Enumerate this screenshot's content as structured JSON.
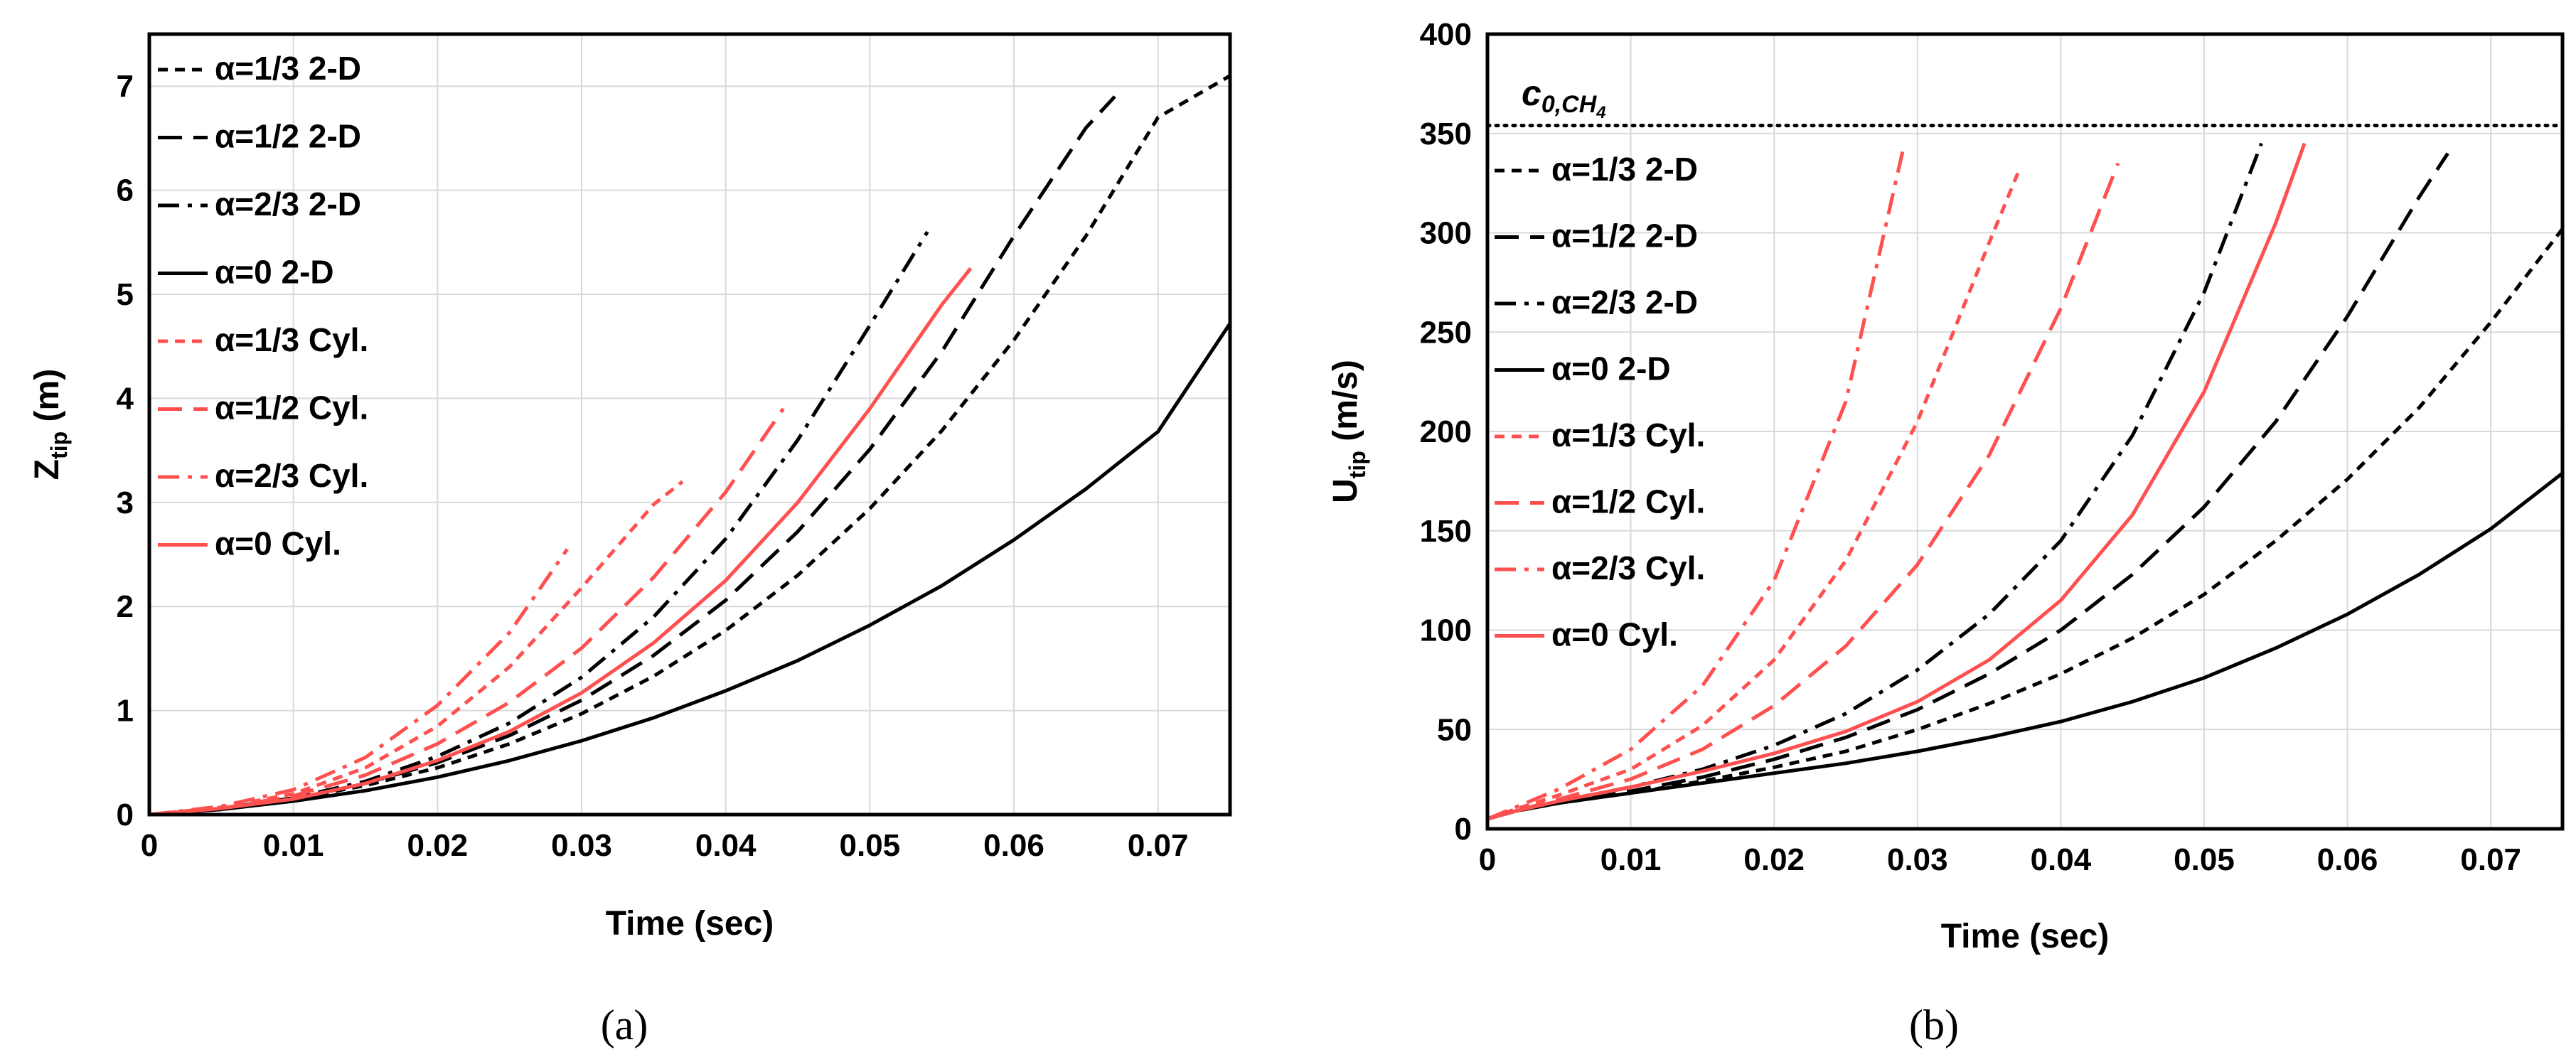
{
  "chart_data": [
    {
      "id": "a",
      "type": "line",
      "panel_label": "(a)",
      "xlabel": "Time (sec)",
      "ylabel_main": "Z",
      "ylabel_sub": "tip",
      "ylabel_unit": " (m)",
      "xlim": [
        0,
        0.075
      ],
      "ylim": [
        0,
        7.5
      ],
      "xticks": [
        0,
        0.01,
        0.02,
        0.03,
        0.04,
        0.05,
        0.06,
        0.07
      ],
      "xtick_labels": [
        "0",
        "0.01",
        "0.02",
        "0.03",
        "0.04",
        "0.05",
        "0.06",
        "0.07"
      ],
      "yticks": [
        0,
        1,
        2,
        3,
        4,
        5,
        6,
        7
      ],
      "ytick_labels": [
        "0",
        "1",
        "2",
        "3",
        "4",
        "5",
        "6",
        "7"
      ],
      "grid": true,
      "legend_position": "top-left",
      "series": [
        {
          "name": "α=1/3 2-D",
          "color": "#000000",
          "dash": "short",
          "x": [
            0,
            0.005,
            0.01,
            0.015,
            0.02,
            0.025,
            0.03,
            0.035,
            0.04,
            0.045,
            0.05,
            0.055,
            0.06,
            0.065,
            0.07,
            0.075
          ],
          "y": [
            0,
            0.06,
            0.15,
            0.28,
            0.45,
            0.68,
            0.97,
            1.33,
            1.77,
            2.3,
            2.94,
            3.69,
            4.56,
            5.56,
            6.7,
            7.1
          ]
        },
        {
          "name": "α=1/2 2-D",
          "color": "#000000",
          "dash": "long",
          "x": [
            0,
            0.005,
            0.01,
            0.015,
            0.02,
            0.025,
            0.03,
            0.035,
            0.04,
            0.045,
            0.05,
            0.055,
            0.06,
            0.065,
            0.067
          ],
          "y": [
            0,
            0.06,
            0.15,
            0.3,
            0.5,
            0.76,
            1.1,
            1.53,
            2.06,
            2.72,
            3.51,
            4.45,
            5.56,
            6.6,
            6.9
          ]
        },
        {
          "name": "α=2/3 2-D",
          "color": "#000000",
          "dash": "dashdot",
          "x": [
            0,
            0.005,
            0.01,
            0.015,
            0.02,
            0.025,
            0.03,
            0.035,
            0.04,
            0.045,
            0.05,
            0.054
          ],
          "y": [
            0,
            0.06,
            0.16,
            0.32,
            0.56,
            0.88,
            1.32,
            1.9,
            2.65,
            3.6,
            4.7,
            5.6
          ]
        },
        {
          "name": "α=0 2-D",
          "color": "#000000",
          "dash": "solid",
          "x": [
            0,
            0.005,
            0.01,
            0.015,
            0.02,
            0.025,
            0.03,
            0.035,
            0.04,
            0.045,
            0.05,
            0.055,
            0.06,
            0.065,
            0.07,
            0.075
          ],
          "y": [
            0,
            0.05,
            0.13,
            0.23,
            0.36,
            0.52,
            0.71,
            0.93,
            1.19,
            1.48,
            1.82,
            2.2,
            2.64,
            3.13,
            3.68,
            4.72
          ]
        },
        {
          "name": "α=1/3 Cyl.",
          "color": "#ff5050",
          "dash": "short",
          "x": [
            0,
            0.005,
            0.01,
            0.015,
            0.02,
            0.025,
            0.03,
            0.035,
            0.037
          ],
          "y": [
            0,
            0.07,
            0.2,
            0.45,
            0.85,
            1.42,
            2.18,
            2.98,
            3.2
          ]
        },
        {
          "name": "α=1/2 Cyl.",
          "color": "#ff5050",
          "dash": "long",
          "x": [
            0,
            0.005,
            0.01,
            0.015,
            0.02,
            0.025,
            0.03,
            0.035,
            0.04,
            0.044
          ],
          "y": [
            0,
            0.06,
            0.18,
            0.38,
            0.68,
            1.08,
            1.6,
            2.28,
            3.1,
            3.9
          ]
        },
        {
          "name": "α=2/3 Cyl.",
          "color": "#ff5050",
          "dash": "dashdot",
          "x": [
            0,
            0.005,
            0.01,
            0.015,
            0.02,
            0.025,
            0.029
          ],
          "y": [
            0,
            0.08,
            0.24,
            0.55,
            1.05,
            1.75,
            2.55
          ]
        },
        {
          "name": "α=0 Cyl.",
          "color": "#ff5050",
          "dash": "solid",
          "x": [
            0,
            0.005,
            0.01,
            0.015,
            0.02,
            0.025,
            0.03,
            0.035,
            0.04,
            0.045,
            0.05,
            0.055,
            0.057
          ],
          "y": [
            0,
            0.06,
            0.15,
            0.3,
            0.52,
            0.8,
            1.17,
            1.65,
            2.25,
            3.0,
            3.9,
            4.9,
            5.25
          ]
        }
      ]
    },
    {
      "id": "b",
      "type": "line",
      "panel_label": "(b)",
      "xlabel": "Time (sec)",
      "ylabel_main": "U",
      "ylabel_sub": "tip",
      "ylabel_unit": " (m/s)",
      "xlim": [
        0,
        0.075
      ],
      "ylim": [
        0,
        400
      ],
      "xticks": [
        0,
        0.01,
        0.02,
        0.03,
        0.04,
        0.05,
        0.06,
        0.07
      ],
      "xtick_labels": [
        "0",
        "0.01",
        "0.02",
        "0.03",
        "0.04",
        "0.05",
        "0.06",
        "0.07"
      ],
      "yticks": [
        0,
        50,
        100,
        150,
        200,
        250,
        300,
        350,
        400
      ],
      "ytick_labels": [
        "0",
        "50",
        "100",
        "150",
        "200",
        "250",
        "300",
        "350",
        "400"
      ],
      "grid": true,
      "legend_position": "top-left",
      "reference_line": {
        "label_main": "c",
        "label_sub": "0,CH",
        "label_subsub": "4",
        "y": 354
      },
      "series": [
        {
          "name": "α=1/3 2-D",
          "color": "#000000",
          "dash": "short",
          "x": [
            0,
            0.002,
            0.005,
            0.01,
            0.015,
            0.02,
            0.025,
            0.03,
            0.035,
            0.04,
            0.045,
            0.05,
            0.055,
            0.06,
            0.065,
            0.07,
            0.075
          ],
          "y": [
            5,
            9,
            13,
            18,
            24,
            31,
            39,
            50,
            63,
            78,
            96,
            118,
            145,
            176,
            212,
            255,
            302
          ]
        },
        {
          "name": "α=1/2 2-D",
          "color": "#000000",
          "dash": "long",
          "x": [
            0,
            0.002,
            0.005,
            0.01,
            0.015,
            0.02,
            0.025,
            0.03,
            0.035,
            0.04,
            0.045,
            0.05,
            0.055,
            0.06,
            0.065,
            0.067
          ],
          "y": [
            5,
            9,
            13,
            19,
            26,
            35,
            46,
            60,
            78,
            100,
            128,
            162,
            205,
            258,
            318,
            340
          ]
        },
        {
          "name": "α=2/3 2-D",
          "color": "#000000",
          "dash": "dashdot",
          "x": [
            0,
            0.002,
            0.005,
            0.01,
            0.015,
            0.02,
            0.025,
            0.03,
            0.035,
            0.04,
            0.045,
            0.05,
            0.054
          ],
          "y": [
            5,
            9,
            14,
            21,
            30,
            42,
            58,
            80,
            108,
            145,
            198,
            270,
            345
          ]
        },
        {
          "name": "α=0 2-D",
          "color": "#000000",
          "dash": "solid",
          "x": [
            0,
            0.002,
            0.005,
            0.01,
            0.015,
            0.02,
            0.025,
            0.03,
            0.035,
            0.04,
            0.045,
            0.05,
            0.055,
            0.06,
            0.065,
            0.07,
            0.075
          ],
          "y": [
            5,
            9,
            13,
            18,
            23,
            28,
            33,
            39,
            46,
            54,
            64,
            76,
            91,
            108,
            128,
            151,
            179
          ]
        },
        {
          "name": "α=1/3 Cyl.",
          "color": "#ff5050",
          "dash": "short",
          "x": [
            0,
            0.002,
            0.005,
            0.01,
            0.015,
            0.02,
            0.025,
            0.03,
            0.035,
            0.037
          ],
          "y": [
            5,
            10,
            17,
            30,
            52,
            85,
            135,
            205,
            295,
            330
          ]
        },
        {
          "name": "α=1/2 Cyl.",
          "color": "#ff5050",
          "dash": "long",
          "x": [
            0,
            0.002,
            0.005,
            0.01,
            0.015,
            0.02,
            0.025,
            0.03,
            0.035,
            0.04,
            0.044
          ],
          "y": [
            5,
            9,
            15,
            25,
            40,
            62,
            92,
            133,
            188,
            262,
            335
          ]
        },
        {
          "name": "α=2/3 Cyl.",
          "color": "#ff5050",
          "dash": "dashdot",
          "x": [
            0,
            0.002,
            0.005,
            0.01,
            0.015,
            0.02,
            0.025,
            0.029
          ],
          "y": [
            5,
            11,
            20,
            40,
            72,
            125,
            215,
            342
          ]
        },
        {
          "name": "α=0 Cyl.",
          "color": "#ff5050",
          "dash": "solid",
          "x": [
            0,
            0.002,
            0.005,
            0.01,
            0.015,
            0.02,
            0.025,
            0.03,
            0.035,
            0.04,
            0.045,
            0.05,
            0.055,
            0.057
          ],
          "y": [
            5,
            9,
            14,
            21,
            29,
            38,
            49,
            64,
            85,
            115,
            158,
            220,
            305,
            345
          ]
        }
      ]
    }
  ]
}
